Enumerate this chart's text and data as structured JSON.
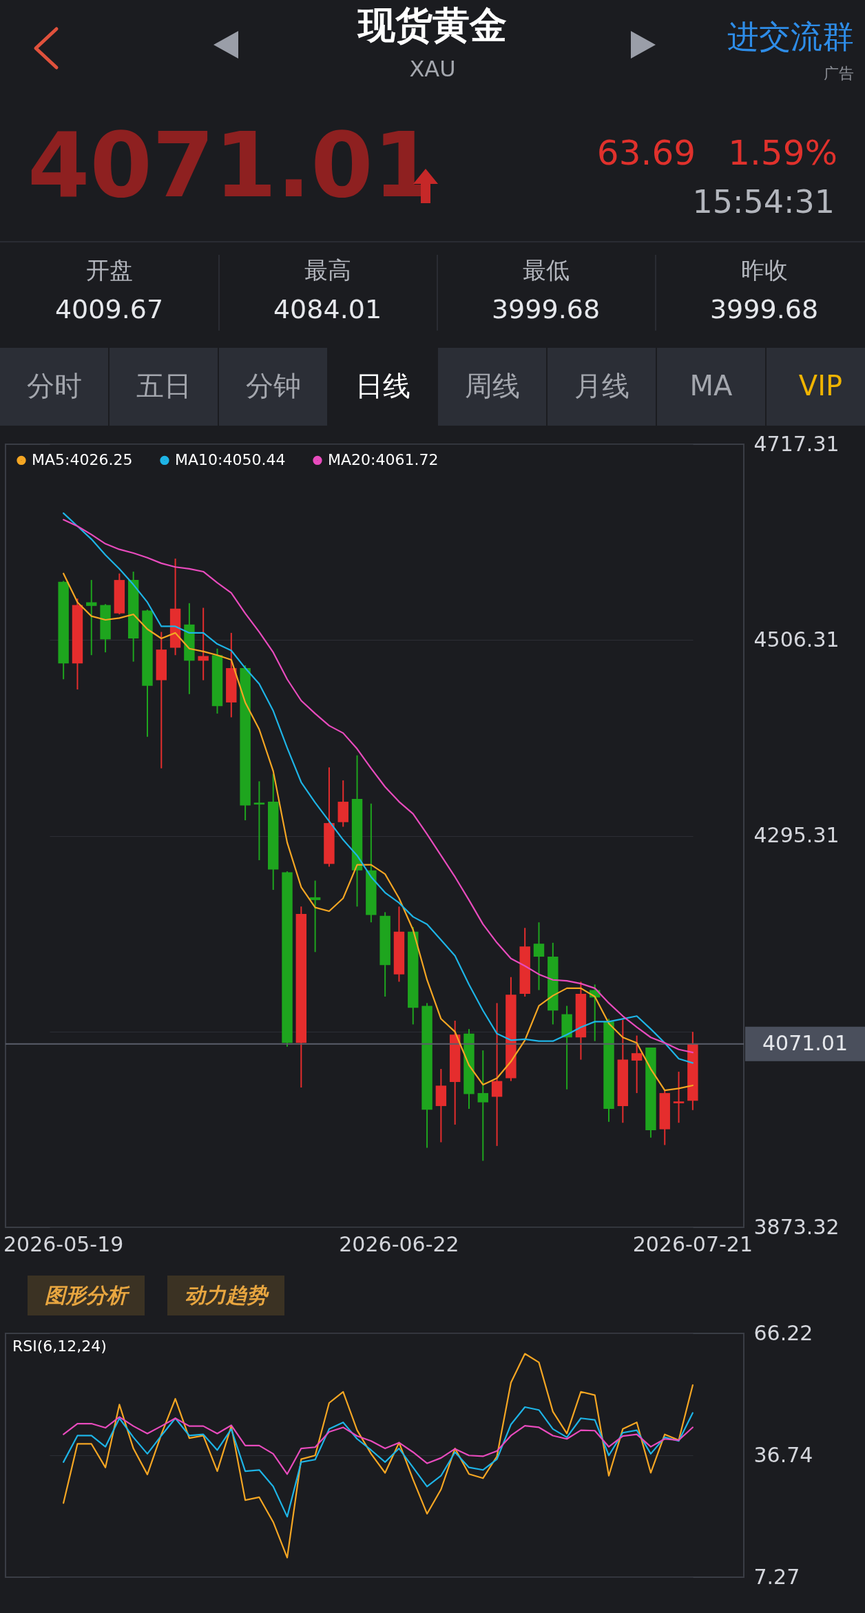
{
  "chart_data": [
    {
      "type": "other",
      "title": "现货黄金",
      "subtitle": "XAU",
      "annotations": [
        "4071.01",
        "63.69",
        "1.59%",
        "15:54:31",
        "开盘",
        "4009.67",
        "最高",
        "4084.01",
        "最低",
        "3999.68",
        "昨收",
        "3999.68",
        "分时",
        "五日",
        "分钟",
        "日线",
        "周线",
        "月线",
        "MA",
        "VIP",
        "进交流群",
        "广告"
      ]
    },
    {
      "type": "candlestick",
      "categories": [
        "2026-05-19",
        null,
        null,
        null,
        null,
        null,
        null,
        null,
        null,
        null,
        null,
        null,
        null,
        null,
        null,
        null,
        null,
        null,
        null,
        null,
        null,
        null,
        null,
        null,
        "2026-06-22",
        null,
        null,
        null,
        null,
        null,
        null,
        null,
        null,
        null,
        null,
        null,
        null,
        null,
        null,
        null,
        null,
        null,
        null,
        null,
        null,
        "2026-07-21"
      ],
      "ohlc": [
        [
          4569,
          4570,
          4464,
          4481
        ],
        [
          4481,
          4551,
          4453,
          4544
        ],
        [
          4547,
          4571,
          4490,
          4543
        ],
        [
          4544,
          4545,
          4493,
          4507
        ],
        [
          4535,
          4578,
          4534,
          4571
        ],
        [
          4571,
          4580,
          4483,
          4508
        ],
        [
          4538,
          4539,
          4402,
          4457
        ],
        [
          4463,
          4515,
          4368,
          4496
        ],
        [
          4498,
          4594,
          4490,
          4540
        ],
        [
          4523,
          4546,
          4448,
          4484
        ],
        [
          4484,
          4541,
          4463,
          4489
        ],
        [
          4490,
          4497,
          4427,
          4435
        ],
        [
          4439,
          4514,
          4423,
          4476
        ],
        [
          4476,
          4479,
          4312,
          4328
        ],
        [
          4331,
          4354,
          4269,
          4329
        ],
        [
          4332,
          4362,
          4237,
          4259
        ],
        [
          4256,
          4257,
          4068,
          4072
        ],
        [
          4072,
          4219,
          4024,
          4211
        ],
        [
          4229,
          4247,
          4170,
          4226
        ],
        [
          4265,
          4369,
          4262,
          4309
        ],
        [
          4310,
          4355,
          4305,
          4332
        ],
        [
          4335,
          4382,
          4219,
          4258
        ],
        [
          4258,
          4330,
          4202,
          4210
        ],
        [
          4209,
          4213,
          4122,
          4156
        ],
        [
          4146,
          4219,
          4138,
          4192
        ],
        [
          4192,
          4197,
          4092,
          4110
        ],
        [
          4112,
          4115,
          3959,
          4000
        ],
        [
          4004,
          4044,
          3965,
          4026
        ],
        [
          4030,
          4096,
          3984,
          4081
        ],
        [
          4082,
          4087,
          4001,
          4017
        ],
        [
          4018,
          4064,
          3945,
          4008
        ],
        [
          4014,
          4115,
          3961,
          4031
        ],
        [
          4034,
          4143,
          4031,
          4124
        ],
        [
          4125,
          4196,
          4122,
          4176
        ],
        [
          4179,
          4202,
          4129,
          4165
        ],
        [
          4165,
          4180,
          4092,
          4107
        ],
        [
          4103,
          4112,
          4022,
          4078
        ],
        [
          4078,
          4138,
          4054,
          4125
        ],
        [
          4129,
          4135,
          4074,
          4121
        ],
        [
          4095,
          4098,
          3987,
          4001
        ],
        [
          4004,
          4097,
          3986,
          4054
        ],
        [
          4053,
          4080,
          4018,
          4061
        ],
        [
          4067,
          4067,
          3970,
          3978
        ],
        [
          3979,
          4021,
          3962,
          4018
        ],
        [
          4007,
          4041,
          3986,
          4009
        ],
        [
          4009.67,
          4084.01,
          3999.68,
          4071.01
        ]
      ],
      "colors": [
        "#1ea51e",
        "#e52d2d",
        "#1ea51e",
        "#1ea51e",
        "#e52d2d",
        "#1ea51e",
        "#1ea51e",
        "#e52d2d",
        "#e52d2d",
        "#1ea51e",
        "#e52d2d",
        "#1ea51e",
        "#e52d2d",
        "#1ea51e",
        "#1ea51e",
        "#1ea51e",
        "#1ea51e",
        "#e52d2d",
        "#1ea51e",
        "#e52d2d",
        "#e52d2d",
        "#1ea51e",
        "#1ea51e",
        "#1ea51e",
        "#e52d2d",
        "#1ea51e",
        "#1ea51e",
        "#e52d2d",
        "#e52d2d",
        "#1ea51e",
        "#1ea51e",
        "#e52d2d",
        "#e52d2d",
        "#e52d2d",
        "#1ea51e",
        "#1ea51e",
        "#1ea51e",
        "#e52d2d",
        "#1ea51e",
        "#1ea51e",
        "#e52d2d",
        "#e52d2d",
        "#1ea51e",
        "#e52d2d",
        "#e52d2d",
        "#e52d2d"
      ],
      "series": [
        {
          "type": "line",
          "name": "MA5:4026.25",
          "color": "#f5a623",
          "values": [
            4578,
            4547,
            4532,
            4528,
            4530,
            4534,
            4518,
            4508,
            4514,
            4497,
            4494,
            4490,
            4485,
            4439,
            4410,
            4365,
            4288,
            4240,
            4218,
            4214,
            4228,
            4264,
            4264,
            4254,
            4228,
            4194,
            4140,
            4098,
            4084,
            4048,
            4027,
            4034,
            4052,
            4075,
            4112,
            4123,
            4131,
            4131,
            4122,
            4093,
            4078,
            4072,
            4044,
            4021,
            4023,
            4026.25
          ]
        },
        {
          "type": "line",
          "name": "MA10:4050.44",
          "color": "#1eb4e6",
          "values": [
            4643,
            4629,
            4615,
            4598,
            4583,
            4566,
            4547,
            4521,
            4521,
            4514,
            4514,
            4502,
            4495,
            4476,
            4459,
            4430,
            4390,
            4353,
            4331,
            4311,
            4291,
            4274,
            4251,
            4234,
            4223,
            4208,
            4200,
            4183,
            4166,
            4135,
            4107,
            4082,
            4075,
            4076,
            4074,
            4074,
            4081,
            4089,
            4095,
            4095,
            4098,
            4101,
            4087,
            4072,
            4055,
            4050.44
          ]
        },
        {
          "type": "line",
          "name": "MA20:4061.72",
          "color": "#e84bbd",
          "values": [
            4636,
            4629,
            4620,
            4610,
            4604,
            4600,
            4595,
            4589,
            4585,
            4583,
            4580,
            4568,
            4557,
            4535,
            4515,
            4493,
            4464,
            4441,
            4427,
            4414,
            4406,
            4389,
            4368,
            4348,
            4332,
            4319,
            4297,
            4274,
            4251,
            4226,
            4200,
            4180,
            4163,
            4155,
            4146,
            4140,
            4139,
            4136,
            4131,
            4115,
            4101,
            4089,
            4078,
            4072,
            4065,
            4061.72
          ]
        }
      ],
      "ylim": [
        3873.32,
        4717.31
      ],
      "yticks": [
        3873.32,
        {
          "value": 4084.31,
          "label": null
        },
        4295.31,
        4506.31,
        4717.31
      ],
      "grid": "y",
      "legend": "top left",
      "ref_lines": [
        {
          "axis": "y",
          "value": 4071.01,
          "label": "4071.01",
          "color": "#5a5e6a"
        }
      ],
      "annotations": [
        "图形分析",
        "动力趋势"
      ]
    },
    {
      "type": "line",
      "title": "RSI(6,12,24)",
      "categories": [
        null,
        null,
        null,
        null,
        null,
        null,
        null,
        null,
        null,
        null,
        null,
        null,
        null,
        null,
        null,
        null,
        null,
        null,
        null,
        null,
        null,
        null,
        null,
        null,
        null,
        null,
        null,
        null,
        null,
        null,
        null,
        null,
        null,
        null,
        null,
        null,
        null,
        null,
        null,
        null,
        null,
        null,
        null,
        null,
        null,
        null
      ],
      "series": [
        {
          "color": "#f5a623",
          "values": [
            25.2,
            39.5,
            39.5,
            33.8,
            49.0,
            38.4,
            32.1,
            41.8,
            50.4,
            40.9,
            41.5,
            32.9,
            43.8,
            25.9,
            26.6,
            20.6,
            12.0,
            35.8,
            36.7,
            49.4,
            52.1,
            42.8,
            37.1,
            32.5,
            39.8,
            30.9,
            22.6,
            28.5,
            38.4,
            32.2,
            31.2,
            36.5,
            54.3,
            61.3,
            59.2,
            47.3,
            42.0,
            52.1,
            51.3,
            31.8,
            43.1,
            44.7,
            32.5,
            41.8,
            40.4,
            53.7
          ]
        },
        {
          "color": "#1eb4e6",
          "values": [
            35.1,
            41.5,
            41.5,
            38.8,
            45.7,
            41.1,
            37.1,
            41.5,
            45.7,
            41.5,
            41.8,
            38.0,
            43.1,
            32.9,
            33.2,
            29.2,
            21.9,
            35.1,
            35.7,
            43.1,
            44.7,
            40.7,
            38.0,
            35.1,
            38.4,
            33.8,
            29.2,
            31.8,
            37.5,
            33.8,
            33.2,
            35.8,
            44.2,
            48.4,
            47.7,
            43.1,
            41.1,
            45.7,
            45.3,
            36.7,
            42.2,
            42.8,
            37.1,
            41.1,
            40.2,
            47.0
          ]
        },
        {
          "color": "#e84bbd",
          "values": [
            41.8,
            44.4,
            44.4,
            43.4,
            46.0,
            43.8,
            42.0,
            43.8,
            45.7,
            43.8,
            43.8,
            42.0,
            44.0,
            39.1,
            39.1,
            37.1,
            32.2,
            38.4,
            38.7,
            42.4,
            43.5,
            41.4,
            40.2,
            38.4,
            39.8,
            37.5,
            34.8,
            36.1,
            38.3,
            36.7,
            36.5,
            37.8,
            41.5,
            43.9,
            43.5,
            41.5,
            40.7,
            42.8,
            42.7,
            38.8,
            41.4,
            41.8,
            38.8,
            40.7,
            40.4,
            43.5
          ]
        }
      ],
      "ylim": [
        7.27,
        66.22
      ],
      "yticks": [
        7.27,
        36.74,
        66.22
      ],
      "grid": "y"
    }
  ]
}
